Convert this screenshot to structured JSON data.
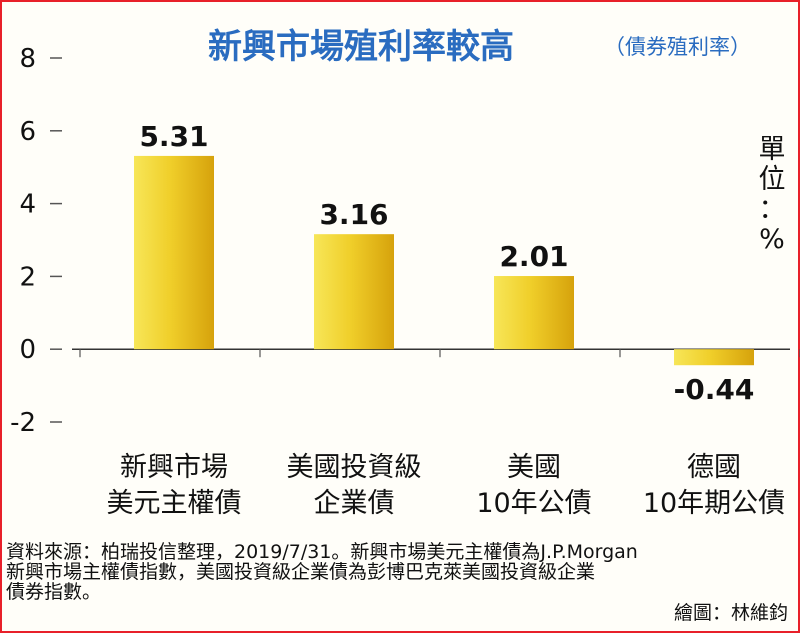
{
  "chart_data": {
    "type": "bar",
    "title": "新興市場殖利率較高",
    "subtitle": "（債券殖利率）",
    "unit_label": [
      "單",
      "位",
      "：",
      "%"
    ],
    "categories": [
      [
        "新興市場",
        "美元主權債"
      ],
      [
        "美國投資級",
        "企業債"
      ],
      [
        "美國",
        "10年公債"
      ],
      [
        "德國",
        "10年期公債"
      ]
    ],
    "values": [
      5.31,
      3.16,
      2.01,
      -0.44
    ],
    "value_labels": [
      "5.31",
      "3.16",
      "2.01",
      "-0.44"
    ],
    "y_ticks": [
      8,
      6,
      4,
      2,
      0,
      -2
    ],
    "y_tick_labels": [
      "8",
      "6",
      "4",
      "2",
      "0",
      "-2"
    ],
    "ylim": [
      -2,
      8
    ],
    "grid": false,
    "colors": {
      "bar_light": "#f6e24a",
      "bar_dark": "#d9a70f",
      "title": "#2a6cc0",
      "border": "#e8202a"
    }
  },
  "source_lines": [
    "資料來源：柏瑞投信整理，2019/7/31。新興市場美元主權債為J.P.Morgan",
    "新興市場主權債指數，美國投資級企業債為彭博巴克萊美國投資級企業",
    "債券指數。"
  ],
  "credit": "繪圖：林維鈞"
}
